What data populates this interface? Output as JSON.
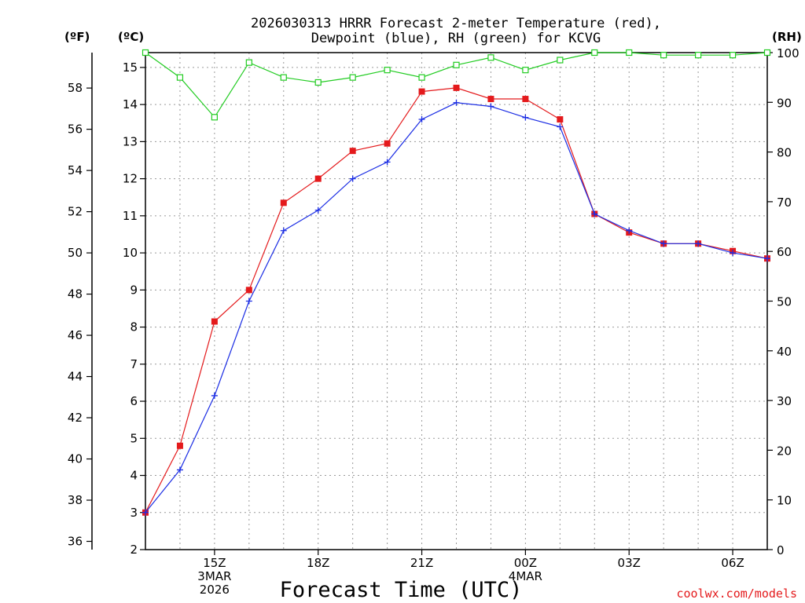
{
  "chart_data": {
    "type": "line",
    "title": "2026030313 HRRR Forecast 2-meter Temperature (red), Dewpoint (blue), RH (green) for KCVG",
    "title_lines": [
      "2026030313 HRRR Forecast 2-meter Temperature (red),",
      "Dewpoint (blue), RH (green) for KCVG"
    ],
    "xlabel": "Forecast Time (UTC)",
    "credit": "coolwx.com/models",
    "units": {
      "f": "(ºF)",
      "c": "(ºC)",
      "rh": "(RH)"
    },
    "x_hours": [
      13,
      14,
      15,
      16,
      17,
      18,
      19,
      20,
      21,
      22,
      23,
      24,
      25,
      26,
      27,
      28,
      29,
      30,
      31
    ],
    "xlim": [
      13,
      31
    ],
    "x_ticks": [
      {
        "hour": 15,
        "lines": [
          "15Z",
          "3MAR",
          "2026"
        ]
      },
      {
        "hour": 18,
        "lines": [
          "18Z"
        ]
      },
      {
        "hour": 21,
        "lines": [
          "21Z"
        ]
      },
      {
        "hour": 24,
        "lines": [
          "00Z",
          "4MAR"
        ]
      },
      {
        "hour": 27,
        "lines": [
          "03Z"
        ]
      },
      {
        "hour": 30,
        "lines": [
          "06Z"
        ]
      }
    ],
    "y_left_c": {
      "lim": [
        2,
        15.4
      ],
      "ticks": [
        2,
        3,
        4,
        5,
        6,
        7,
        8,
        9,
        10,
        11,
        12,
        13,
        14,
        15
      ]
    },
    "y_left_f": {
      "ticks": [
        36,
        38,
        40,
        42,
        44,
        46,
        48,
        50,
        52,
        54,
        56,
        58
      ]
    },
    "y_right_rh": {
      "lim": [
        0,
        100
      ],
      "ticks": [
        0,
        10,
        20,
        30,
        40,
        50,
        60,
        70,
        80,
        90,
        100
      ]
    },
    "series": [
      {
        "name": "Temperature",
        "unit": "C",
        "color": "#e41a1c",
        "marker": "filled-square",
        "values": [
          3.0,
          4.8,
          8.15,
          9.0,
          11.35,
          12.0,
          12.75,
          12.95,
          14.35,
          14.45,
          14.15,
          14.15,
          13.6,
          11.05,
          10.55,
          10.25,
          10.25,
          10.05,
          9.85
        ]
      },
      {
        "name": "Dewpoint",
        "unit": "C",
        "color": "#1c2ee4",
        "marker": "plus",
        "values": [
          3.0,
          4.15,
          6.15,
          8.7,
          10.6,
          11.15,
          12.0,
          12.45,
          13.6,
          14.05,
          13.95,
          13.65,
          13.4,
          11.05,
          10.6,
          10.25,
          10.25,
          10.0,
          9.85
        ]
      },
      {
        "name": "RH",
        "unit": "%",
        "color": "#22cc22",
        "marker": "open-square",
        "values": [
          100,
          95,
          87,
          98,
          95,
          94,
          95,
          96.5,
          95,
          97.5,
          99,
          96.5,
          98.5,
          100,
          100,
          99.5,
          99.5,
          99.5,
          100
        ]
      }
    ]
  }
}
